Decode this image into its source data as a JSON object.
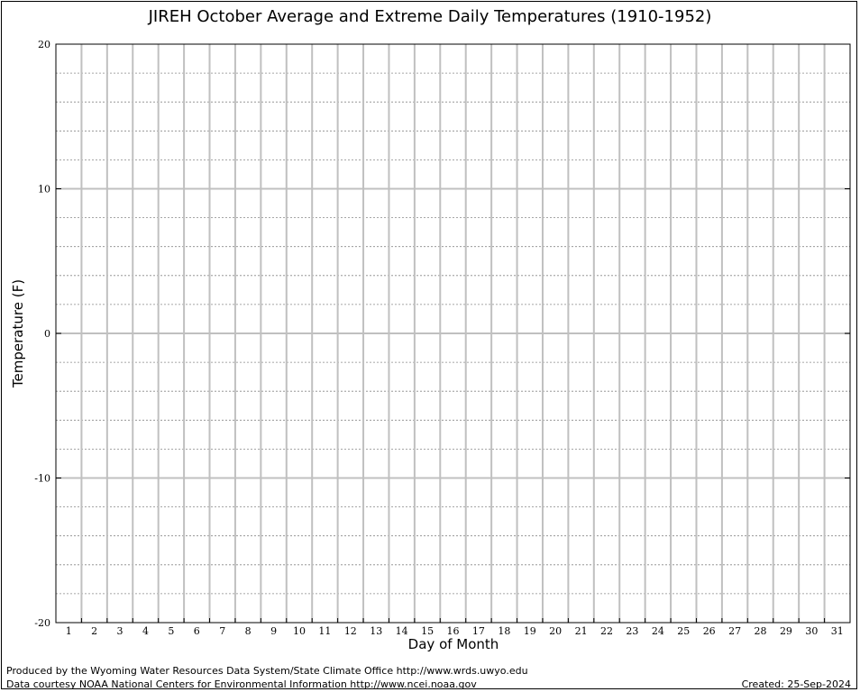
{
  "chart_data": {
    "type": "line",
    "title": "JIREH October Average and Extreme Daily Temperatures (1910-1952)",
    "xlabel": "Day of Month",
    "ylabel": "Temperature (F)",
    "x": [
      1,
      2,
      3,
      4,
      5,
      6,
      7,
      8,
      9,
      10,
      11,
      12,
      13,
      14,
      15,
      16,
      17,
      18,
      19,
      20,
      21,
      22,
      23,
      24,
      25,
      26,
      27,
      28,
      29,
      30,
      31
    ],
    "xlim": [
      0.5,
      31.5
    ],
    "ylim": [
      -20,
      20
    ],
    "y_ticks": [
      -20,
      -10,
      0,
      10,
      20
    ],
    "y_minor_step": 2,
    "grid": true,
    "series": []
  },
  "footer": {
    "produced_by": "Produced by the Wyoming Water Resources Data System/State Climate Office http://www.wrds.uwyo.edu",
    "data_courtesy": "Data courtesy NOAA National Centers for Environmental Information http://www.ncei.noaa.gov",
    "created": "Created:  25-Sep-2024"
  }
}
